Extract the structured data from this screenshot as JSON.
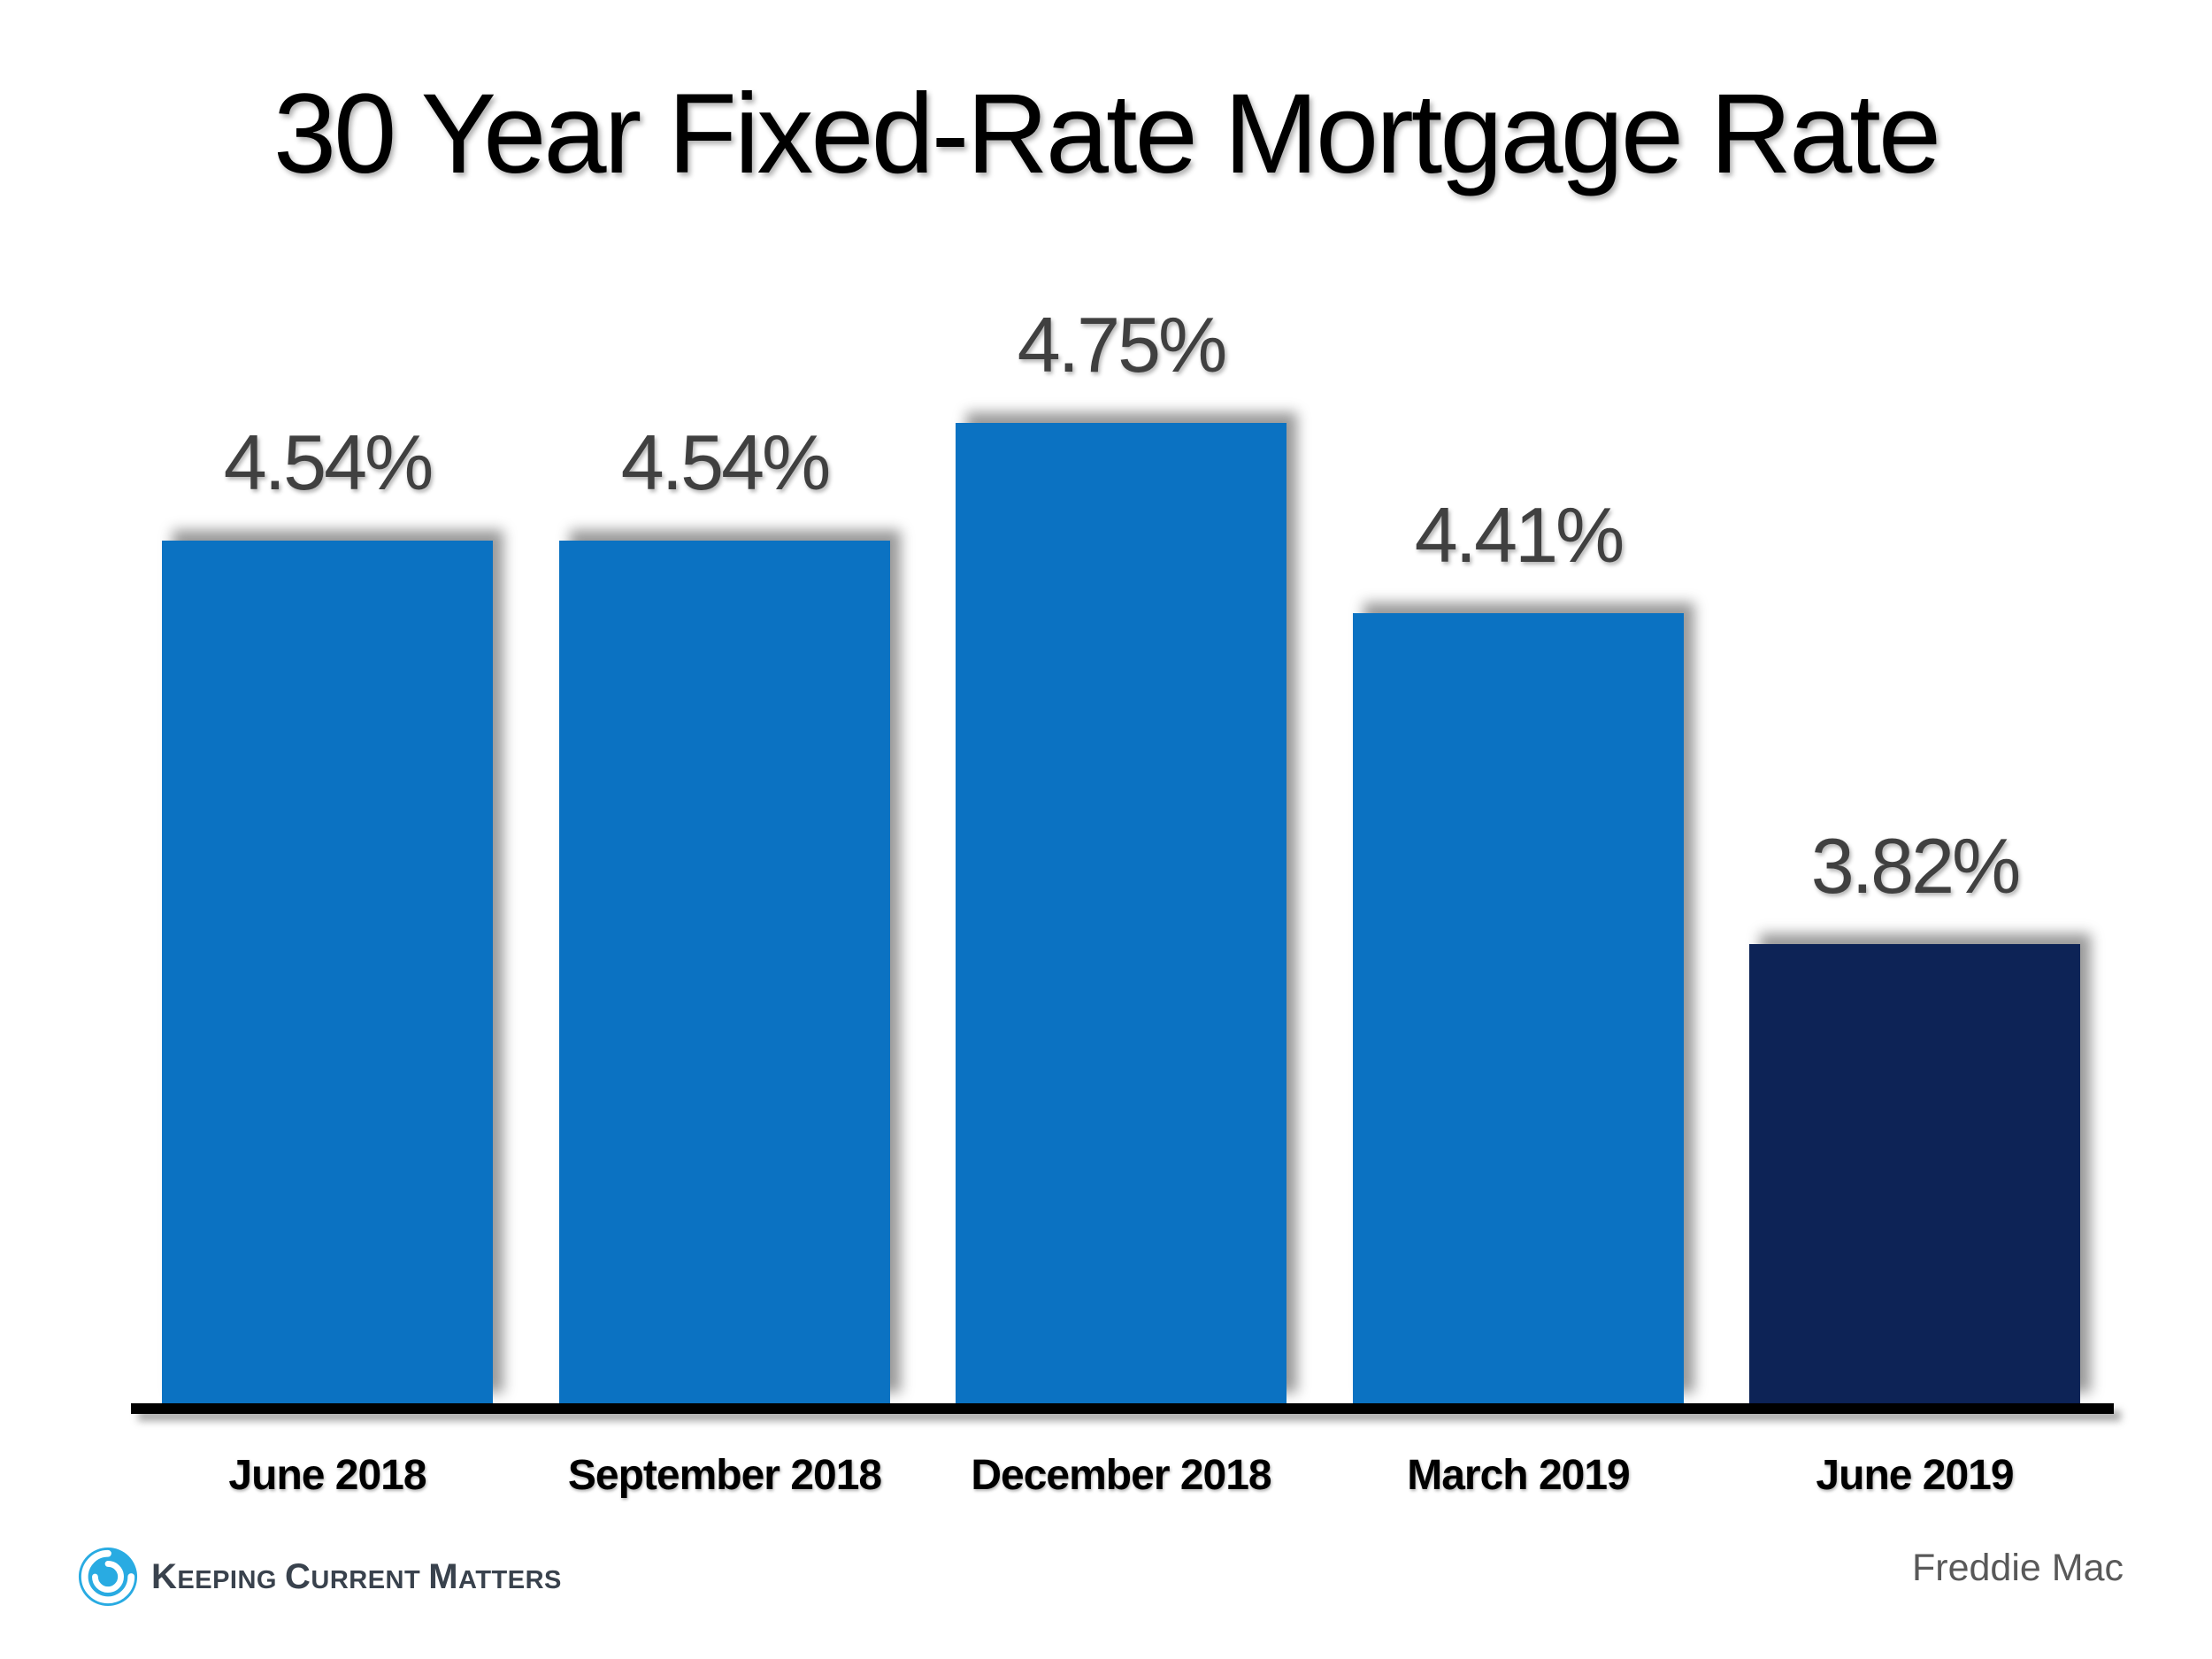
{
  "chart_data": {
    "type": "bar",
    "title": "30 Year Fixed-Rate Mortgage Rate",
    "categories": [
      "June 2018",
      "September 2018",
      "December 2018",
      "March 2019",
      "June 2019"
    ],
    "values": [
      4.54,
      4.54,
      4.75,
      4.41,
      3.82
    ],
    "labels": [
      "4.54%",
      "4.54%",
      "4.75%",
      "4.41%",
      "3.82%"
    ],
    "xlabel": "",
    "ylabel": "",
    "ylim": [
      3.0,
      5.0
    ],
    "grid": false,
    "legend": null,
    "highlight_index": 4,
    "source": "Freddie Mac"
  },
  "colors": {
    "bar": "#0b72c2",
    "bar_highlight": "#0d2356",
    "value_label": "#404040",
    "category_label": "#000000",
    "axis": "#000000",
    "title": "#000000",
    "source_text": "#595959",
    "logo_blue": "#29abe2",
    "logo_text": "#39424d"
  },
  "logo": {
    "icon": "kcm-swirl-icon",
    "words": [
      "Keeping",
      "Current",
      "Matters"
    ]
  }
}
